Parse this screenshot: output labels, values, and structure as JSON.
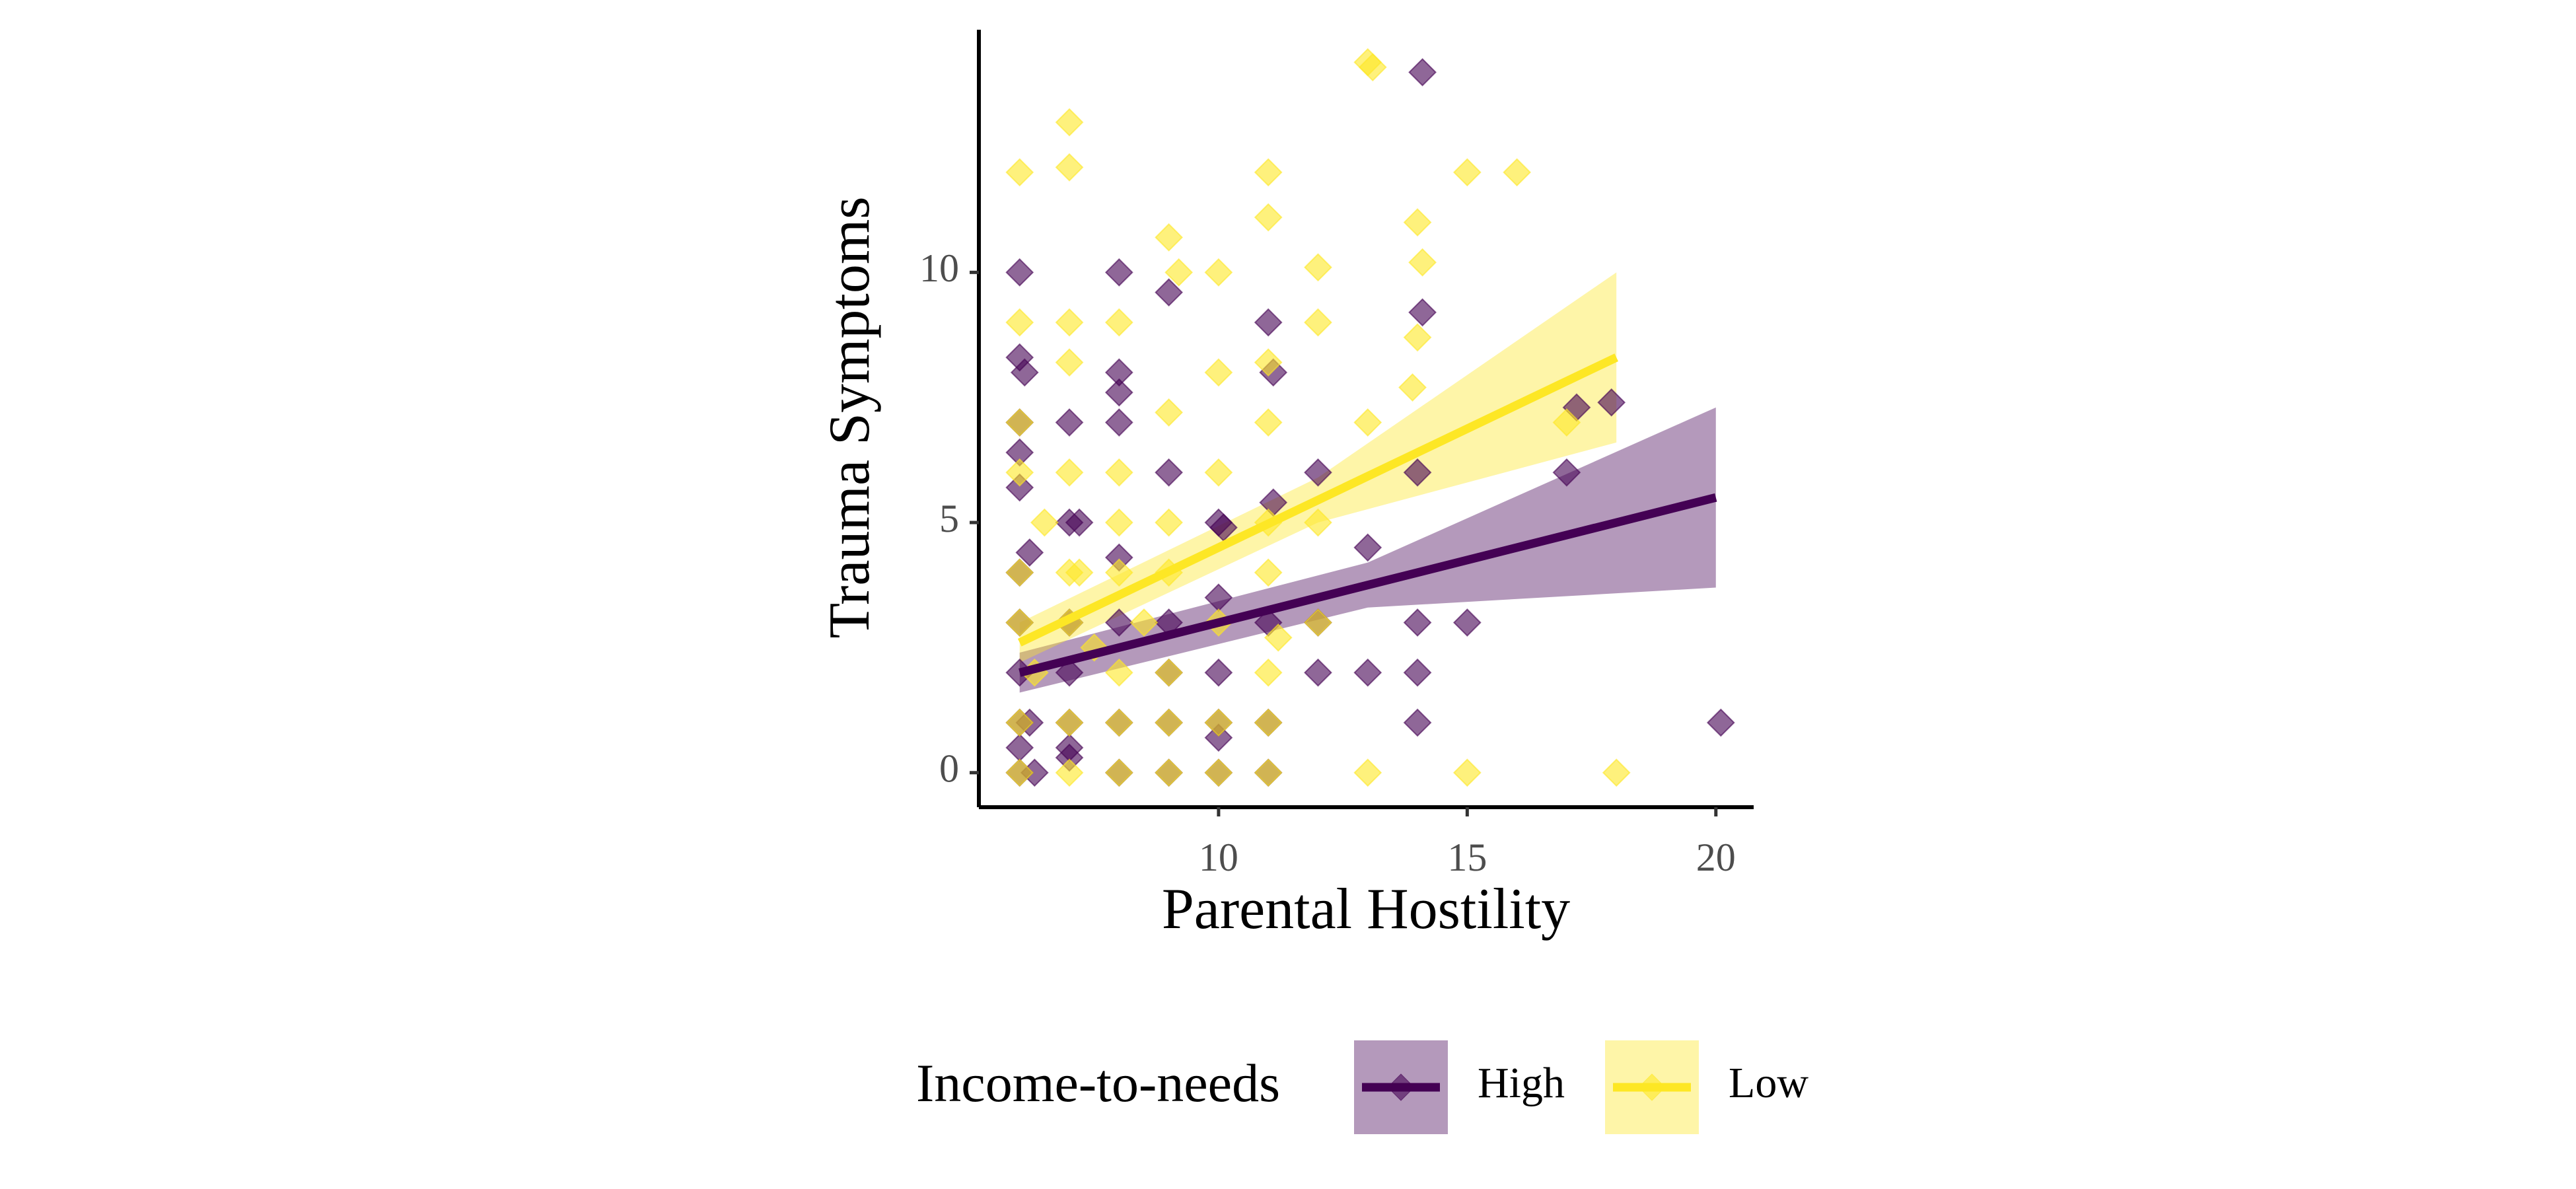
{
  "chart_data": {
    "type": "scatter",
    "x_label": "Parental Hostility",
    "y_label": "Trauma Symptoms",
    "xlim": [
      5.18,
      20.76
    ],
    "ylim": [
      -0.69,
      14.85
    ],
    "xticks": [
      10,
      15,
      20
    ],
    "yticks": [
      0,
      5,
      10
    ],
    "legend_title": "Income-to-needs",
    "legend_position": "bottom",
    "series": [
      {
        "name": "High",
        "color": "#440154",
        "x": [
          6,
          8,
          9,
          11,
          14.1,
          6,
          6.1,
          8,
          8,
          11.1,
          6,
          7,
          8,
          12,
          14,
          17,
          17.2,
          17.9,
          9,
          7,
          7.2,
          10,
          10.1,
          13,
          6,
          6,
          6.2,
          6,
          8,
          6,
          7,
          8,
          9,
          10,
          11,
          12,
          14,
          15,
          6,
          7,
          9,
          10,
          12,
          13,
          14,
          6,
          6.2,
          7,
          8,
          9,
          10,
          11,
          14,
          20.1,
          6,
          6.3,
          7,
          8,
          9,
          10,
          11,
          14.1,
          11.1,
          6,
          7,
          10
        ],
        "y": [
          10,
          10,
          9.6,
          9,
          9.2,
          8.3,
          8,
          8,
          7.6,
          8,
          7,
          7,
          7,
          6,
          6,
          6,
          7.3,
          7.4,
          6,
          5,
          5,
          5,
          4.9,
          4.5,
          6.4,
          5.7,
          4.4,
          4,
          4.3,
          3,
          3,
          3,
          3,
          3.5,
          3,
          3,
          3,
          3,
          2,
          2,
          2,
          2,
          2,
          2,
          2,
          1,
          1,
          1,
          1,
          1,
          1,
          1,
          1,
          1,
          0,
          0,
          0.3,
          0,
          0,
          0,
          0,
          14,
          5.4,
          0.5,
          0.5,
          0.7
        ],
        "fit": {
          "x": [
            6,
            13,
            20
          ],
          "y": [
            2.0,
            3.75,
            5.5
          ],
          "lower": [
            1.6,
            3.3,
            3.7
          ],
          "upper": [
            2.4,
            4.2,
            7.3
          ]
        }
      },
      {
        "name": "Low",
        "color": "#fde725",
        "x": [
          6,
          7,
          7,
          6,
          7,
          8,
          9,
          9.2,
          10,
          11,
          11,
          12,
          12,
          13,
          13.1,
          14,
          14.1,
          14,
          13.9,
          15,
          16,
          17,
          13,
          10,
          11,
          11,
          9,
          7,
          6,
          6,
          7,
          8,
          9,
          10,
          11,
          12,
          7,
          8,
          6,
          6,
          7,
          8,
          9,
          10,
          11,
          12,
          6,
          7,
          8,
          9,
          10,
          11,
          6,
          7,
          8,
          9,
          10,
          11,
          13,
          15,
          18,
          6.5,
          7.2,
          8,
          9,
          11,
          11.2,
          6.3,
          7.5,
          8.5
        ],
        "y": [
          12,
          13,
          12.1,
          9,
          9,
          9,
          10.7,
          10,
          10,
          12,
          11.1,
          10.1,
          9,
          14.2,
          14.1,
          11,
          10.2,
          8.7,
          7.7,
          12,
          12,
          7,
          7,
          8,
          8.2,
          7,
          7.2,
          8.2,
          7,
          6,
          6,
          6,
          5,
          6,
          5,
          5,
          4,
          4,
          4,
          3,
          3,
          2,
          2,
          3,
          2,
          3,
          1,
          1,
          1,
          1,
          1,
          1,
          0,
          0,
          0,
          0,
          0,
          0,
          0,
          0,
          0,
          5,
          4,
          5,
          4,
          4,
          2.7,
          2,
          2.5,
          3
        ],
        "fit": {
          "x": [
            6,
            12,
            18
          ],
          "y": [
            2.6,
            5.45,
            8.3
          ],
          "lower": [
            2.2,
            5.0,
            6.6
          ],
          "upper": [
            3.0,
            5.9,
            10.0
          ]
        }
      }
    ]
  }
}
